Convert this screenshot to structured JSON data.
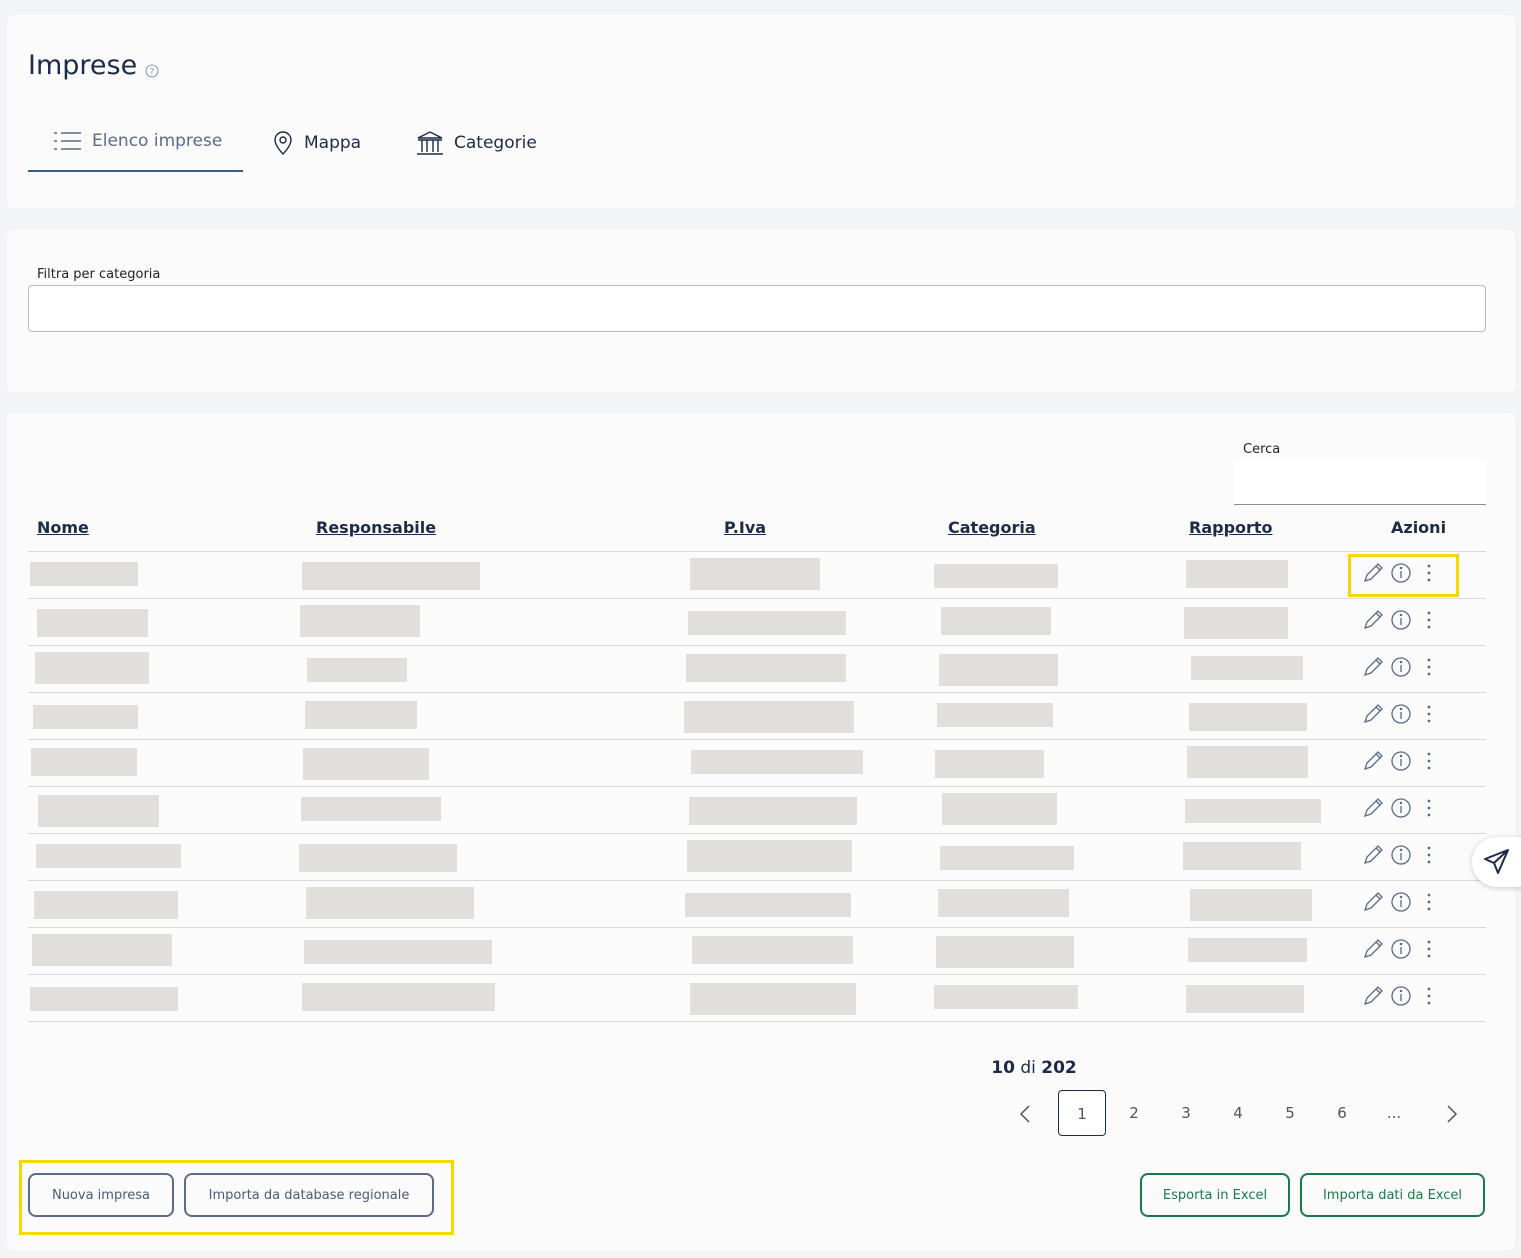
{
  "header": {
    "title": "Imprese"
  },
  "tabs": [
    "Elenco imprese",
    "Mappa",
    "Categorie"
  ],
  "filter": {
    "label": "Filtra per categoria"
  },
  "search": {
    "label": "Cerca"
  },
  "table": {
    "columns": [
      "Nome",
      "Responsabile",
      "P.Iva",
      "Categoria",
      "Rapporto",
      "Azioni"
    ]
  },
  "pagination": {
    "count": 10,
    "of": "di",
    "total": 202,
    "pages": [
      "1",
      "2",
      "3",
      "4",
      "5",
      "6",
      "..."
    ]
  },
  "buttons": {
    "left": [
      "Nuova impresa",
      "Importa da database regionale"
    ],
    "right": [
      "Esporta in Excel",
      "Importa dati da Excel"
    ]
  }
}
